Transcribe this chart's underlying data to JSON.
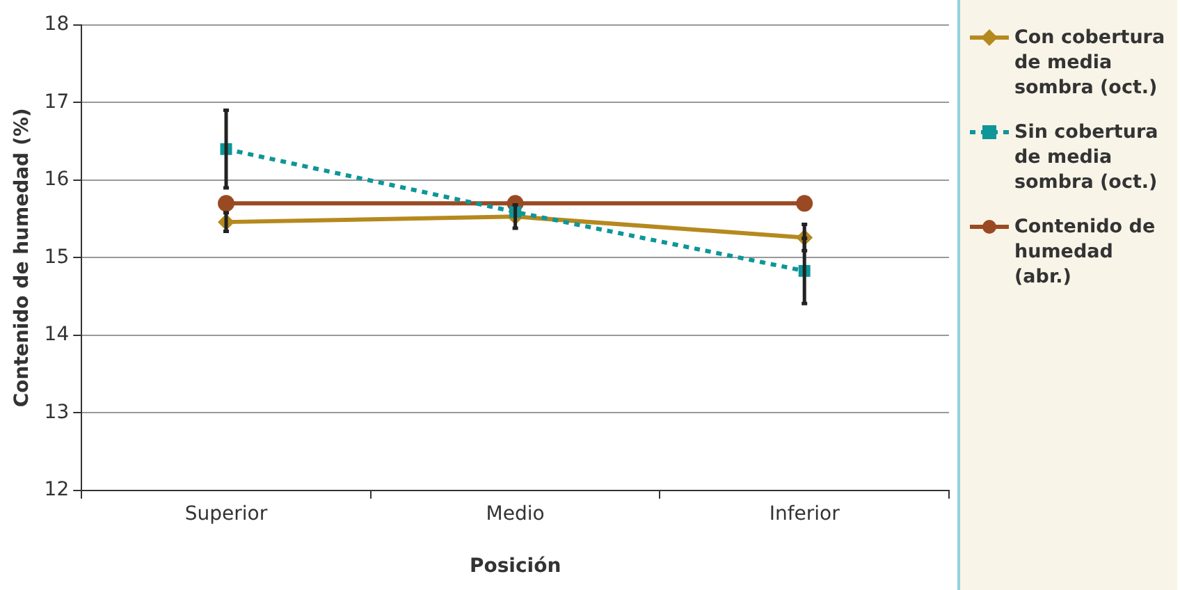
{
  "chart_data": {
    "type": "line",
    "xlabel": "Posición",
    "ylabel": "Contenido de humedad (%)",
    "categories": [
      "Superior",
      "Medio",
      "Inferior"
    ],
    "series": [
      {
        "name": "Con cobertura de media sombra (oct.)",
        "color": "#b5891e",
        "marker": "diamond",
        "line_style": "solid",
        "values": [
          15.46,
          15.53,
          15.26
        ],
        "errors": [
          0.12,
          0.15,
          0.17
        ]
      },
      {
        "name": "Sin cobertura de media sombra (oct.)",
        "color": "#0e9698",
        "marker": "square",
        "line_style": "dotted",
        "values": [
          16.4,
          15.59,
          14.83
        ],
        "errors": [
          0.5,
          null,
          0.42
        ]
      },
      {
        "name": "Contenido de humedad (abr.)",
        "color": "#9a4a22",
        "marker": "circle",
        "line_style": "solid",
        "values": [
          15.7,
          15.7,
          15.7
        ]
      }
    ],
    "ylim": [
      12,
      18
    ],
    "yticks": [
      12,
      13,
      14,
      15,
      16,
      17,
      18
    ],
    "grid": "y",
    "legend": "right"
  }
}
